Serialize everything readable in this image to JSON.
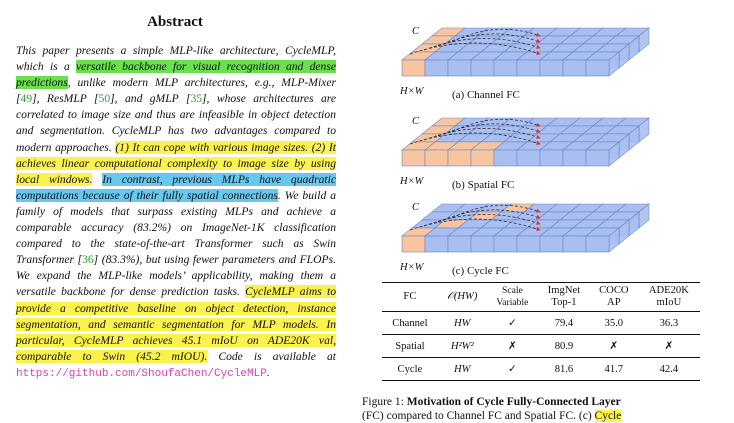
{
  "abstract": {
    "title": "Abstract",
    "segments": [
      {
        "text": "This paper presents a simple MLP-like architecture, Cy­cleMLP, which is a "
      },
      {
        "text": "versatile backbone for visual recognition and dense predictions",
        "hl": "green"
      },
      {
        "text": ", unlike modern MLP architectures, e.g., MLP-Mixer ["
      },
      {
        "text": "49",
        "cite": true
      },
      {
        "text": "], ResMLP ["
      },
      {
        "text": "50",
        "cite": true
      },
      {
        "text": "], and gMLP ["
      },
      {
        "text": "35",
        "cite": true
      },
      {
        "text": "], whose architectures are correlated to image size and thus are infeasible in object detection and segmentation. Cy­cleMLP has two advantages compared to modern ap­proaches. "
      },
      {
        "text": "(1) It can cope with various image sizes. (2) It achieves linear computational complexity to image size by using local windows.",
        "hl": "yellow"
      },
      {
        "text": " "
      },
      {
        "text": "In contrast, previous MLPs have quadratic computations because of their fully spatial con­nections",
        "hl": "blue"
      },
      {
        "text": ". We build a family of models that surpass exist­ing MLPs and achieve a comparable accuracy (83.2%) on ImageNet-1K classification compared to the state-of-the-art Transformer such as Swin Transformer ["
      },
      {
        "text": "36",
        "cite": true
      },
      {
        "text": "] (83.3%), but using fewer parameters and FLOPs. We expand the MLP-like models’ applicability, making them a versatile back­bone for dense prediction tasks. "
      },
      {
        "text": "CycleMLP aims to pro­vide a competitive baseline on object detection, instance segmentation, and semantic segmentation for MLP models. In particular, CycleMLP achieves 45.1 mIoU on ADE20K val, comparable to Swin (45.2 mIOU).",
        "hl": "yellow"
      },
      {
        "text": " Code is available at "
      },
      {
        "text": "https://github.com/ShoufaChen/CycleMLP",
        "url": true
      },
      {
        "text": "."
      }
    ]
  },
  "figure": {
    "panels": [
      {
        "label": "(a) Channel FC",
        "c_label": "C",
        "hw_label": "H×W"
      },
      {
        "label": "(b) Spatial FC",
        "c_label": "C",
        "hw_label": "H×W"
      },
      {
        "label": "(c) Cycle FC",
        "c_label": "C",
        "hw_label": "H×W"
      }
    ],
    "colors": {
      "grid_blue": "#a9bff0",
      "grid_edge": "#6f86c8",
      "highlight": "#f7c6a0",
      "arrow_red": "#e03030"
    },
    "table": {
      "headers": {
        "fc": "FC",
        "complexity": "𝒪(HW)",
        "scale_variable": [
          "Scale",
          "Variable"
        ],
        "imgnet": [
          "ImgNet",
          "Top-1"
        ],
        "coco": [
          "COCO",
          "AP"
        ],
        "ade": [
          "ADE20K",
          "mIoU"
        ]
      },
      "rows": [
        {
          "fc": "Channel",
          "complexity": "HW",
          "scale": "✓",
          "top1": "79.4",
          "ap": "35.0",
          "miou": "36.3"
        },
        {
          "fc": "Spatial",
          "complexity": "H²W²",
          "scale": "✗",
          "top1": "80.9",
          "ap": "✗",
          "miou": "✗"
        },
        {
          "fc": "Cycle",
          "complexity": "HW",
          "scale": "✓",
          "top1": "81.6",
          "ap": "41.7",
          "miou": "42.4"
        }
      ]
    },
    "caption": {
      "prefix": "Figure 1: ",
      "bold": "Motivation of Cycle Fully-Connected Layer",
      "line2_a": "(FC) compared to Channel FC and Spatial FC. (c) ",
      "line2_hl": "Cycle"
    }
  }
}
